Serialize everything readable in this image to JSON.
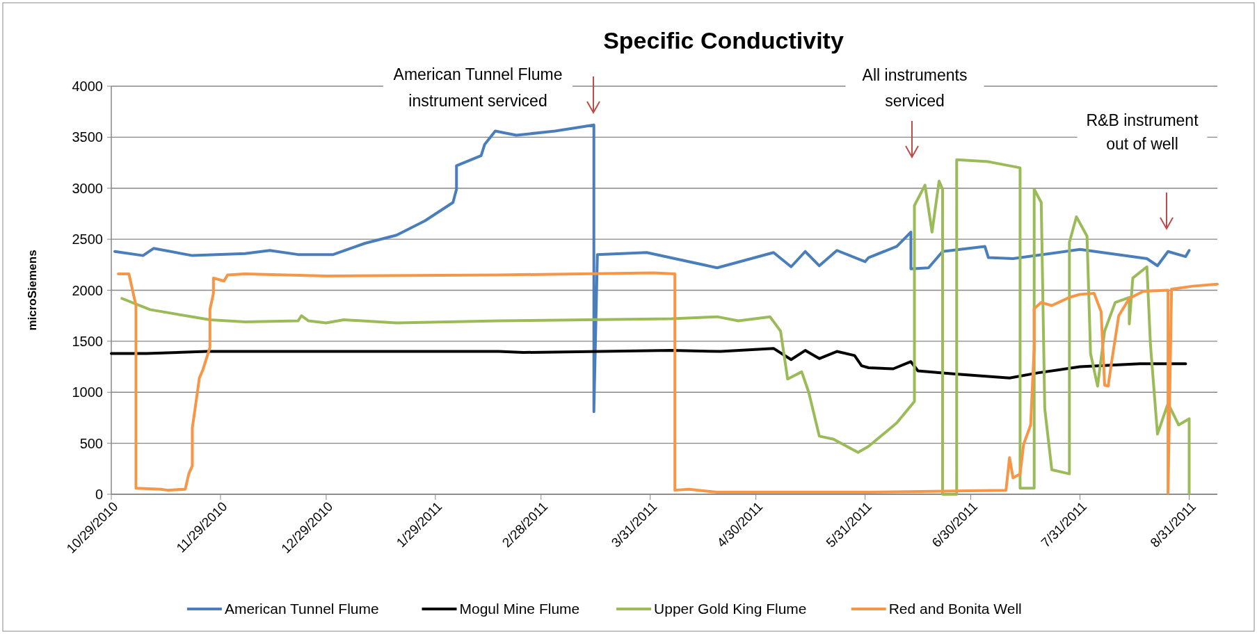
{
  "chart_data": {
    "type": "line",
    "title": "Specific Conductivity",
    "ylabel": "microSiemens",
    "xlim": [
      "2010-10-29",
      "2011-09-08"
    ],
    "ylim": [
      0,
      4000
    ],
    "yticks": [
      0,
      500,
      1000,
      1500,
      2000,
      2500,
      3000,
      3500,
      4000
    ],
    "xticks": [
      {
        "value": "2010-10-29",
        "label": "10/29/2010"
      },
      {
        "value": "2010-11-29",
        "label": "11/29/2010"
      },
      {
        "value": "2010-12-29",
        "label": "12/29/2010"
      },
      {
        "value": "2011-01-29",
        "label": "1/29/2011"
      },
      {
        "value": "2011-02-28",
        "label": "2/28/2011"
      },
      {
        "value": "2011-03-31",
        "label": "3/31/2011"
      },
      {
        "value": "2011-04-30",
        "label": "4/30/2011"
      },
      {
        "value": "2011-05-31",
        "label": "5/31/2011"
      },
      {
        "value": "2011-06-30",
        "label": "6/30/2011"
      },
      {
        "value": "2011-07-31",
        "label": "7/31/2011"
      },
      {
        "value": "2011-08-31",
        "label": "8/31/2011"
      }
    ],
    "grid": "y",
    "legend": "bottom",
    "series": [
      {
        "name": "American Tunnel Flume",
        "color": "#4a7ebb",
        "x": [
          "2010-10-30",
          "2010-11-07",
          "2010-11-10",
          "2010-11-21",
          "2010-12-06",
          "2010-12-13",
          "2010-12-21",
          "2010-12-31",
          "2011-01-09",
          "2011-01-18",
          "2011-01-26",
          "2011-02-03",
          "2011-02-04",
          "2011-02-04",
          "2011-02-11",
          "2011-02-12",
          "2011-02-15",
          "2011-02-21",
          "2011-03-04",
          "2011-03-15",
          "2011-03-15",
          "2011-03-16",
          "2011-03-30",
          "2011-04-19",
          "2011-05-05",
          "2011-05-10",
          "2011-05-14",
          "2011-05-18",
          "2011-05-23",
          "2011-05-31",
          "2011-06-01",
          "2011-06-09",
          "2011-06-13",
          "2011-06-13",
          "2011-06-18",
          "2011-06-22",
          "2011-07-04",
          "2011-07-05",
          "2011-07-12",
          "2011-07-31",
          "2011-08-19",
          "2011-08-22",
          "2011-08-25",
          "2011-08-30",
          "2011-08-31"
        ],
        "values": [
          2380,
          2340,
          2410,
          2340,
          2360,
          2390,
          2350,
          2350,
          2460,
          2540,
          2680,
          2860,
          2990,
          3220,
          3320,
          3430,
          3560,
          3520,
          3560,
          3620,
          810,
          2350,
          2370,
          2220,
          2370,
          2230,
          2380,
          2240,
          2390,
          2280,
          2320,
          2430,
          2570,
          2210,
          2220,
          2380,
          2430,
          2320,
          2310,
          2400,
          2310,
          2240,
          2380,
          2330,
          2390
        ]
      },
      {
        "name": "Mogul Mine Flume",
        "color": "#000000",
        "x": [
          "2010-10-29",
          "2010-11-08",
          "2010-11-25",
          "2010-12-13",
          "2011-02-16",
          "2011-02-23",
          "2011-04-06",
          "2011-04-20",
          "2011-05-05",
          "2011-05-10",
          "2011-05-14",
          "2011-05-18",
          "2011-05-23",
          "2011-05-28",
          "2011-05-30",
          "2011-06-01",
          "2011-06-08",
          "2011-06-13",
          "2011-06-15",
          "2011-06-25",
          "2011-07-11",
          "2011-07-19",
          "2011-07-31",
          "2011-08-17",
          "2011-08-30"
        ],
        "values": [
          1380,
          1380,
          1400,
          1400,
          1400,
          1390,
          1410,
          1400,
          1430,
          1320,
          1410,
          1330,
          1400,
          1360,
          1260,
          1240,
          1230,
          1300,
          1210,
          1180,
          1140,
          1190,
          1250,
          1280,
          1280
        ]
      },
      {
        "name": "Upper Gold King Flume",
        "color": "#9bbb59",
        "x": [
          "2010-11-01",
          "2010-11-09",
          "2010-11-26",
          "2010-12-06",
          "2010-12-21",
          "2010-12-22",
          "2010-12-24",
          "2010-12-29",
          "2011-01-03",
          "2011-01-18",
          "2011-02-16",
          "2011-04-06",
          "2011-04-19",
          "2011-04-25",
          "2011-05-04",
          "2011-05-07",
          "2011-05-09",
          "2011-05-13",
          "2011-05-15",
          "2011-05-18",
          "2011-05-22",
          "2011-05-29",
          "2011-06-01",
          "2011-06-09",
          "2011-06-14",
          "2011-06-14",
          "2011-06-17",
          "2011-06-19",
          "2011-06-21",
          "2011-06-22",
          "2011-06-22",
          "2011-06-26",
          "2011-06-26",
          "2011-07-05",
          "2011-07-14",
          "2011-07-14",
          "2011-07-18",
          "2011-07-18",
          "2011-07-20",
          "2011-07-21",
          "2011-07-23",
          "2011-07-28",
          "2011-07-28",
          "2011-07-30",
          "2011-08-02",
          "2011-08-03",
          "2011-08-05",
          "2011-08-07",
          "2011-08-10",
          "2011-08-14",
          "2011-08-14",
          "2011-08-15",
          "2011-08-19",
          "2011-08-20",
          "2011-08-22",
          "2011-08-25",
          "2011-08-28",
          "2011-08-31",
          "2011-08-31"
        ],
        "values": [
          1920,
          1810,
          1710,
          1690,
          1700,
          1750,
          1700,
          1680,
          1710,
          1680,
          1700,
          1720,
          1740,
          1700,
          1740,
          1600,
          1130,
          1200,
          1000,
          570,
          540,
          410,
          470,
          700,
          910,
          2830,
          3030,
          2570,
          3070,
          2990,
          0,
          0,
          3280,
          3260,
          3200,
          60,
          60,
          2990,
          2860,
          840,
          240,
          200,
          2470,
          2720,
          2530,
          1380,
          1060,
          1600,
          1880,
          1930,
          1670,
          2120,
          2230,
          1470,
          590,
          890,
          680,
          740,
          10
        ]
      },
      {
        "name": "Red and Bonita Well",
        "color": "#f79646",
        "x": [
          "2010-10-31",
          "2010-11-03",
          "2010-11-05",
          "2010-11-05",
          "2010-11-12",
          "2010-11-14",
          "2010-11-19",
          "2010-11-20",
          "2010-11-21",
          "2010-11-21",
          "2010-11-22",
          "2010-11-23",
          "2010-11-24",
          "2010-11-25",
          "2010-11-26",
          "2010-11-26",
          "2010-11-27",
          "2010-11-27",
          "2010-11-30",
          "2010-12-01",
          "2010-12-06",
          "2010-12-29",
          "2011-02-16",
          "2011-04-01",
          "2011-04-07",
          "2011-04-07",
          "2011-04-11",
          "2011-04-19",
          "2011-06-01",
          "2011-07-10",
          "2011-07-11",
          "2011-07-12",
          "2011-07-14",
          "2011-07-15",
          "2011-07-17",
          "2011-07-18",
          "2011-07-18",
          "2011-07-20",
          "2011-07-23",
          "2011-07-28",
          "2011-07-31",
          "2011-08-04",
          "2011-08-06",
          "2011-08-07",
          "2011-08-08",
          "2011-08-09",
          "2011-08-11",
          "2011-08-14",
          "2011-08-18",
          "2011-08-25",
          "2011-08-25",
          "2011-08-26",
          "2011-09-01",
          "2011-09-08"
        ],
        "values": [
          2160,
          2160,
          1850,
          60,
          50,
          40,
          50,
          200,
          280,
          650,
          890,
          1140,
          1220,
          1330,
          1440,
          1810,
          1970,
          2120,
          2090,
          2150,
          2160,
          2140,
          2150,
          2170,
          2160,
          40,
          50,
          20,
          20,
          40,
          360,
          160,
          200,
          490,
          680,
          1440,
          1820,
          1880,
          1850,
          1930,
          1960,
          1970,
          1790,
          1070,
          1060,
          1300,
          1750,
          1920,
          1990,
          2000,
          10,
          2010,
          2040,
          2060
        ]
      }
    ],
    "annotations": [
      "American Tunnel Flume\ninstrument serviced",
      "All instruments\nserviced",
      "R&B instrument\nout of well"
    ]
  }
}
